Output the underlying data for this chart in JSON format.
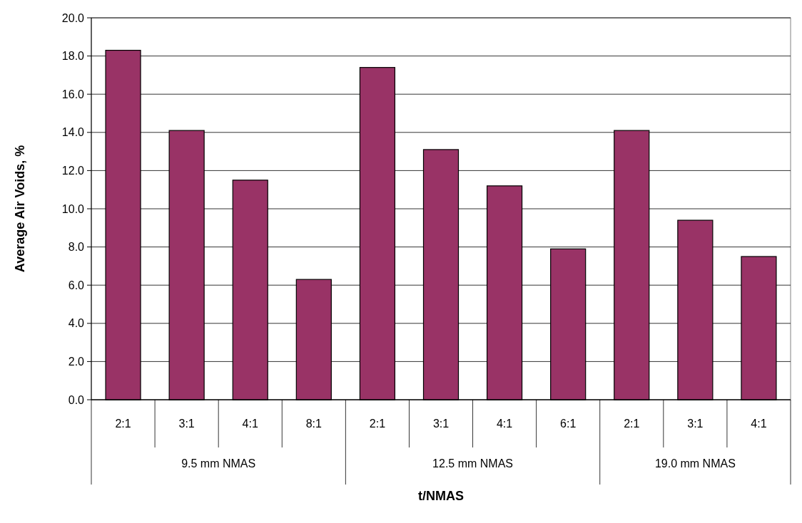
{
  "chart_data": {
    "type": "bar",
    "xlabel": "t/NMAS",
    "ylabel": "Average Air Voids, %",
    "categories": [
      "2:1",
      "3:1",
      "4:1",
      "8:1",
      "2:1",
      "3:1",
      "4:1",
      "6:1",
      "2:1",
      "3:1",
      "4:1"
    ],
    "values": [
      18.3,
      14.1,
      11.5,
      6.3,
      17.4,
      13.1,
      11.2,
      7.9,
      14.1,
      9.4,
      7.5
    ],
    "color": "#993366",
    "ylim": [
      0,
      20
    ],
    "yticks": [
      {
        "value": 0,
        "label": "0.0"
      },
      {
        "value": 2,
        "label": "2.0"
      },
      {
        "value": 4,
        "label": "4.0"
      },
      {
        "value": 6,
        "label": "6.0"
      },
      {
        "value": 8,
        "label": "8.0"
      },
      {
        "value": 10,
        "label": "10.0"
      },
      {
        "value": 12,
        "label": "12.0"
      },
      {
        "value": 14,
        "label": "14.0"
      },
      {
        "value": 16,
        "label": "16.0"
      },
      {
        "value": 18,
        "label": "18.0"
      },
      {
        "value": 20,
        "label": "20.0"
      }
    ],
    "grid": "y",
    "annotations": [
      "9.5 mm NMAS",
      "12.5 mm NMAS",
      "19.0 mm NMAS"
    ]
  }
}
